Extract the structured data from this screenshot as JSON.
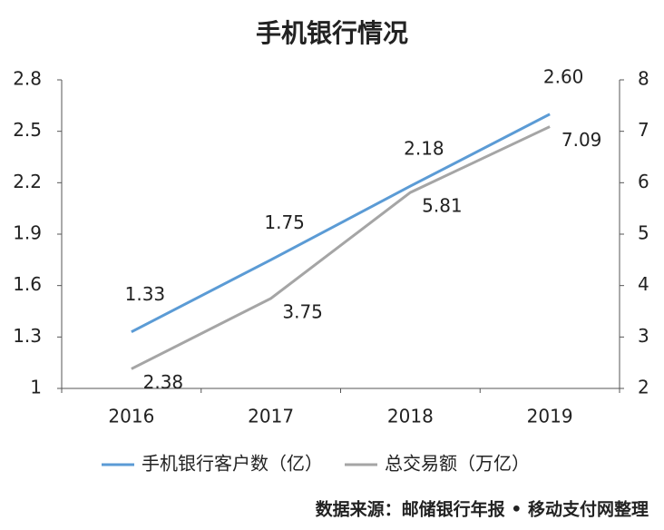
{
  "chart_data": {
    "type": "line",
    "title": "手机银行情况",
    "categories": [
      "2016",
      "2017",
      "2018",
      "2019"
    ],
    "series": [
      {
        "name": "手机银行客户数（亿）",
        "color": "#5b9bd5",
        "values": [
          1.33,
          1.75,
          2.18,
          2.6
        ],
        "value_labels": [
          "1.33",
          "1.75",
          "2.18",
          "2.60"
        ]
      },
      {
        "name": "总交易额（万亿）",
        "color": "#a5a5a5",
        "values": [
          2.38,
          3.75,
          5.81,
          7.09
        ],
        "axis": "y2"
      }
    ],
    "ylim": [
      1,
      2.8
    ],
    "yticks": [
      1,
      1.3,
      1.6,
      1.9,
      2.2,
      2.5,
      2.8
    ],
    "y2lim": [
      2,
      8
    ],
    "y2ticks": [
      2,
      3,
      4,
      5,
      6,
      7,
      8
    ],
    "legend": "bottom",
    "source": "数据来源：邮储银行年报 • 移动支付网整理"
  }
}
